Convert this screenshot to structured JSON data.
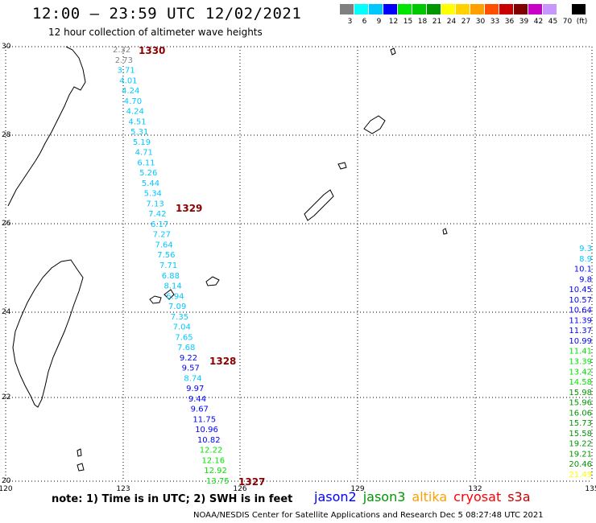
{
  "header": {
    "title": "12:00 – 23:59 UTC 12/02/2021",
    "subtitle": "12 hour collection of altimeter wave heights"
  },
  "legend": {
    "colors": [
      "#808080",
      "#00ffff",
      "#00c8ff",
      "#0000ff",
      "#00e600",
      "#00c800",
      "#009600",
      "#ffff00",
      "#ffd200",
      "#ffa000",
      "#ff5000",
      "#c80000",
      "#800000",
      "#c800c8",
      "#c896ff",
      "#ffffff",
      "#000000"
    ],
    "labels": [
      "3",
      "6",
      "9",
      "12",
      "15",
      "18",
      "21",
      "24",
      "27",
      "30",
      "33",
      "36",
      "39",
      "42",
      "45",
      "70",
      "(ft)"
    ]
  },
  "map": {
    "lat_labels": [
      "30",
      "28",
      "26",
      "24",
      "22",
      "20"
    ],
    "lon_labels": [
      "120",
      "123",
      "126",
      "129",
      "132",
      "135"
    ]
  },
  "passes": [
    "1330",
    "1329",
    "1328",
    "1327"
  ],
  "track_values": [
    "2.32",
    "2.73",
    "3.71",
    "4.01",
    "4.24",
    "4.70",
    "4.24",
    "4.51",
    "5.31",
    "5.19",
    "4.71",
    "6.11",
    "5.26",
    "5.44",
    "5.34",
    "7.13",
    "7.42",
    "6.17",
    "7.27",
    "7.64",
    "7.56",
    "7.71",
    "6.88",
    "8.14",
    "6.94",
    "7.09",
    "7.35",
    "7.04",
    "7.65",
    "7.68",
    "9.22",
    "9.57",
    "8.74",
    "9.97",
    "9.44",
    "9.67",
    "11.75",
    "10.96",
    "10.82",
    "12.22",
    "12.16",
    "12.92",
    "13.75"
  ],
  "track_colors": [
    "#808080",
    "#808080",
    "#00c8ff",
    "#00c8ff",
    "#00c8ff",
    "#00c8ff",
    "#00c8ff",
    "#00c8ff",
    "#00c8ff",
    "#00c8ff",
    "#00c8ff",
    "#00c8ff",
    "#00c8ff",
    "#00c8ff",
    "#00c8ff",
    "#00c8ff",
    "#00c8ff",
    "#00c8ff",
    "#00c8ff",
    "#00c8ff",
    "#00c8ff",
    "#00c8ff",
    "#00c8ff",
    "#00c8ff",
    "#00c8ff",
    "#00c8ff",
    "#00c8ff",
    "#00c8ff",
    "#00c8ff",
    "#00c8ff",
    "#0000ff",
    "#0000ff",
    "#00c8ff",
    "#0000ff",
    "#0000ff",
    "#0000ff",
    "#0000ff",
    "#0000ff",
    "#0000ff",
    "#00e600",
    "#00e600",
    "#00e600",
    "#00e600"
  ],
  "edge_values": [
    "9.3",
    "8.9",
    "10.1",
    "9.8",
    "10.45",
    "10.57",
    "10.64",
    "11.39",
    "11.37",
    "10.99",
    "11.41",
    "13.39",
    "13.42",
    "14.58",
    "15.98",
    "15.96",
    "16.06",
    "15.73",
    "15.58",
    "19.22",
    "19.21",
    "20.46",
    "21.49"
  ],
  "edge_colors": [
    "#00c8ff",
    "#00c8ff",
    "#0000ff",
    "#0000ff",
    "#0000ff",
    "#0000ff",
    "#0000ff",
    "#0000ff",
    "#0000ff",
    "#0000ff",
    "#00e600",
    "#00e600",
    "#00e600",
    "#00e600",
    "#009600",
    "#009600",
    "#009600",
    "#009600",
    "#009600",
    "#009600",
    "#009600",
    "#009600",
    "#ffff00"
  ],
  "footer": {
    "note": "note: 1) Time is in UTC; 2) SWH is in feet",
    "satellites": [
      {
        "name": "jason2",
        "color": "#0000ff"
      },
      {
        "name": "jason3",
        "color": "#009600"
      },
      {
        "name": "altika",
        "color": "#ffa000"
      },
      {
        "name": "cryosat",
        "color": "#ff0000"
      },
      {
        "name": "s3a",
        "color": "#c80000"
      }
    ],
    "credit": "NOAA/NESDIS Center for Satellite Applications and Research    Dec  5 08:27:48 UTC 2021"
  }
}
